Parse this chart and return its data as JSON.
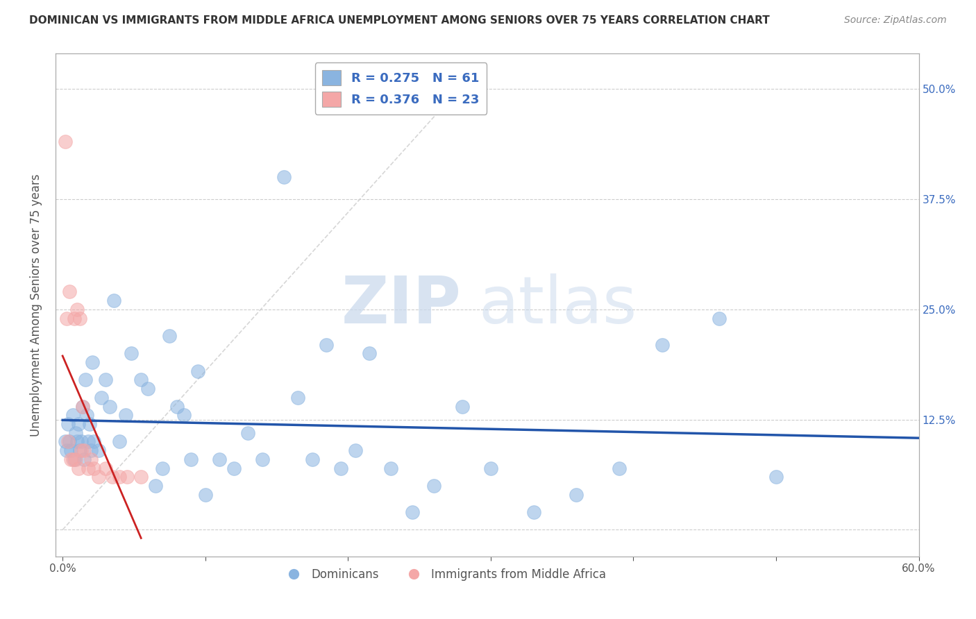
{
  "title": "DOMINICAN VS IMMIGRANTS FROM MIDDLE AFRICA UNEMPLOYMENT AMONG SENIORS OVER 75 YEARS CORRELATION CHART",
  "source": "Source: ZipAtlas.com",
  "ylabel": "Unemployment Among Seniors over 75 years",
  "xlabel": "",
  "xlim": [
    -0.005,
    0.6
  ],
  "ylim": [
    -0.03,
    0.54
  ],
  "yticks": [
    0.0,
    0.125,
    0.25,
    0.375,
    0.5
  ],
  "ytick_labels_left": [
    "",
    "",
    "",
    "",
    ""
  ],
  "ytick_labels_right": [
    "",
    "12.5%",
    "25.0%",
    "37.5%",
    "50.0%"
  ],
  "xticks": [
    0.0,
    0.1,
    0.2,
    0.3,
    0.4,
    0.5,
    0.6
  ],
  "xtick_labels": [
    "0.0%",
    "",
    "",
    "",
    "",
    "",
    "60.0%"
  ],
  "dominicans_R": 0.275,
  "dominicans_N": 61,
  "immigrants_R": 0.376,
  "immigrants_N": 23,
  "blue_color": "#8ab4e0",
  "pink_color": "#f4a7a7",
  "blue_line_color": "#2255aa",
  "pink_line_color": "#cc2222",
  "gray_diag_color": "#cccccc",
  "legend_text_color": "#3a6bbf",
  "watermark_zip": "ZIP",
  "watermark_atlas": "atlas",
  "dominicans_x": [
    0.002,
    0.003,
    0.004,
    0.005,
    0.006,
    0.007,
    0.008,
    0.009,
    0.01,
    0.011,
    0.012,
    0.013,
    0.014,
    0.015,
    0.016,
    0.017,
    0.018,
    0.019,
    0.02,
    0.021,
    0.022,
    0.025,
    0.027,
    0.03,
    0.033,
    0.036,
    0.04,
    0.044,
    0.048,
    0.055,
    0.06,
    0.065,
    0.07,
    0.075,
    0.08,
    0.085,
    0.09,
    0.095,
    0.1,
    0.11,
    0.12,
    0.13,
    0.14,
    0.155,
    0.165,
    0.175,
    0.185,
    0.195,
    0.205,
    0.215,
    0.23,
    0.245,
    0.26,
    0.28,
    0.3,
    0.33,
    0.36,
    0.39,
    0.42,
    0.46,
    0.5
  ],
  "dominicans_y": [
    0.1,
    0.09,
    0.12,
    0.1,
    0.09,
    0.13,
    0.08,
    0.11,
    0.1,
    0.12,
    0.09,
    0.1,
    0.14,
    0.08,
    0.17,
    0.13,
    0.1,
    0.12,
    0.09,
    0.19,
    0.1,
    0.09,
    0.15,
    0.17,
    0.14,
    0.26,
    0.1,
    0.13,
    0.2,
    0.17,
    0.16,
    0.05,
    0.07,
    0.22,
    0.14,
    0.13,
    0.08,
    0.18,
    0.04,
    0.08,
    0.07,
    0.11,
    0.08,
    0.4,
    0.15,
    0.08,
    0.21,
    0.07,
    0.09,
    0.2,
    0.07,
    0.02,
    0.05,
    0.14,
    0.07,
    0.02,
    0.04,
    0.07,
    0.21,
    0.24,
    0.06
  ],
  "immigrants_x": [
    0.002,
    0.003,
    0.004,
    0.005,
    0.006,
    0.007,
    0.008,
    0.009,
    0.01,
    0.011,
    0.012,
    0.013,
    0.014,
    0.015,
    0.018,
    0.02,
    0.022,
    0.025,
    0.03,
    0.035,
    0.04,
    0.045,
    0.055
  ],
  "immigrants_y": [
    0.44,
    0.24,
    0.1,
    0.27,
    0.08,
    0.08,
    0.24,
    0.08,
    0.25,
    0.07,
    0.24,
    0.09,
    0.14,
    0.09,
    0.07,
    0.08,
    0.07,
    0.06,
    0.07,
    0.06,
    0.06,
    0.06,
    0.06
  ]
}
